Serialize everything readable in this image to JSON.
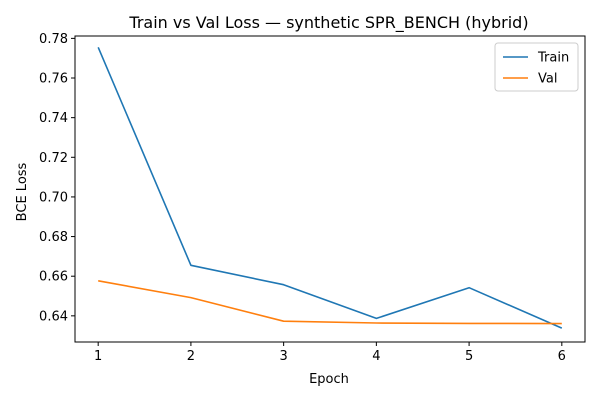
{
  "chart_data": {
    "type": "line",
    "title": "Train vs Val Loss — synthetic SPR_BENCH (hybrid)",
    "xlabel": "Epoch",
    "ylabel": "BCE Loss",
    "x": [
      1,
      2,
      3,
      4,
      5,
      6
    ],
    "xlim": [
      0.75,
      6.25
    ],
    "ylim": [
      0.6268,
      0.7812
    ],
    "xticks": [
      1,
      2,
      3,
      4,
      5,
      6
    ],
    "yticks": [
      0.64,
      0.66,
      0.68,
      0.7,
      0.72,
      0.74,
      0.76,
      0.78
    ],
    "ytick_labels": [
      "0.64",
      "0.66",
      "0.68",
      "0.70",
      "0.72",
      "0.74",
      "0.76",
      "0.78"
    ],
    "grid": false,
    "legend_position": "top-right",
    "series": [
      {
        "name": "Train",
        "color": "#1f77b4",
        "values": [
          0.7755,
          0.6655,
          0.6557,
          0.6387,
          0.6542,
          0.6338
        ]
      },
      {
        "name": "Val",
        "color": "#ff7f0e",
        "values": [
          0.6577,
          0.6492,
          0.6373,
          0.6364,
          0.6362,
          0.6361
        ]
      }
    ]
  }
}
